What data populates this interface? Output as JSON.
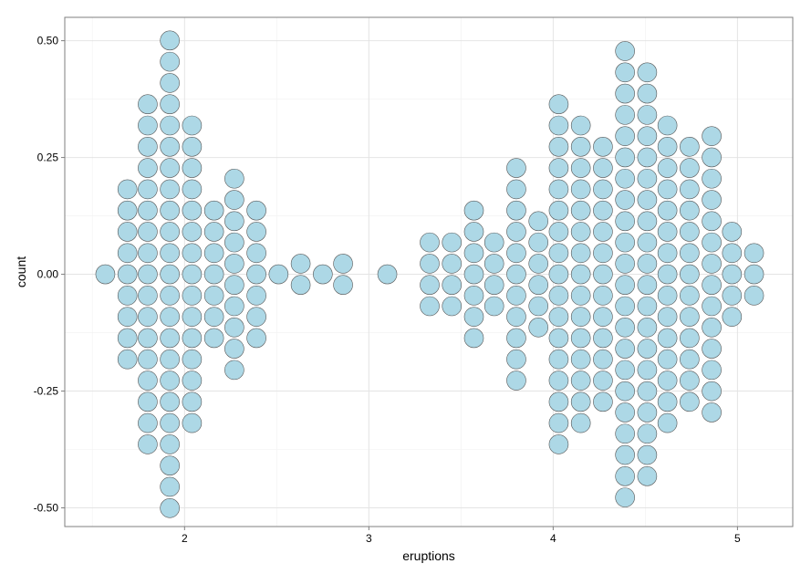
{
  "chart_data": {
    "type": "dotplot",
    "title": "",
    "xlabel": "eruptions",
    "ylabel": "count",
    "xlim": [
      1.35,
      5.3
    ],
    "ylim": [
      -0.54,
      0.55
    ],
    "xticks": [
      {
        "value": 2,
        "label": "2"
      },
      {
        "value": 3,
        "label": "3"
      },
      {
        "value": 4,
        "label": "4"
      },
      {
        "value": 5,
        "label": "5"
      }
    ],
    "yticks": [
      {
        "value": 0.5,
        "label": "0.50"
      },
      {
        "value": 0.25,
        "label": "0.25"
      },
      {
        "value": 0.0,
        "label": "0.00"
      },
      {
        "value": -0.25,
        "label": "-0.25"
      },
      {
        "value": -0.5,
        "label": "-0.50"
      }
    ],
    "grid": true,
    "dot_fill": "#add8e6",
    "dot_stroke": "#555555",
    "stacks": [
      {
        "x": 1.57,
        "count": 1
      },
      {
        "x": 1.69,
        "count": 9
      },
      {
        "x": 1.8,
        "count": 17
      },
      {
        "x": 1.92,
        "count": 23
      },
      {
        "x": 2.04,
        "count": 15
      },
      {
        "x": 2.16,
        "count": 7
      },
      {
        "x": 2.27,
        "count": 10
      },
      {
        "x": 2.39,
        "count": 7
      },
      {
        "x": 2.51,
        "count": 1
      },
      {
        "x": 2.63,
        "count": 2
      },
      {
        "x": 2.75,
        "count": 1
      },
      {
        "x": 2.86,
        "count": 2
      },
      {
        "x": 3.1,
        "count": 1
      },
      {
        "x": 3.33,
        "count": 4
      },
      {
        "x": 3.45,
        "count": 4
      },
      {
        "x": 3.57,
        "count": 7
      },
      {
        "x": 3.68,
        "count": 4
      },
      {
        "x": 3.8,
        "count": 11
      },
      {
        "x": 3.92,
        "count": 6
      },
      {
        "x": 4.03,
        "count": 17
      },
      {
        "x": 4.15,
        "count": 15
      },
      {
        "x": 4.27,
        "count": 13
      },
      {
        "x": 4.39,
        "count": 22
      },
      {
        "x": 4.51,
        "count": 20
      },
      {
        "x": 4.62,
        "count": 15
      },
      {
        "x": 4.74,
        "count": 13
      },
      {
        "x": 4.86,
        "count": 14
      },
      {
        "x": 4.97,
        "count": 5
      },
      {
        "x": 5.09,
        "count": 3
      }
    ]
  }
}
